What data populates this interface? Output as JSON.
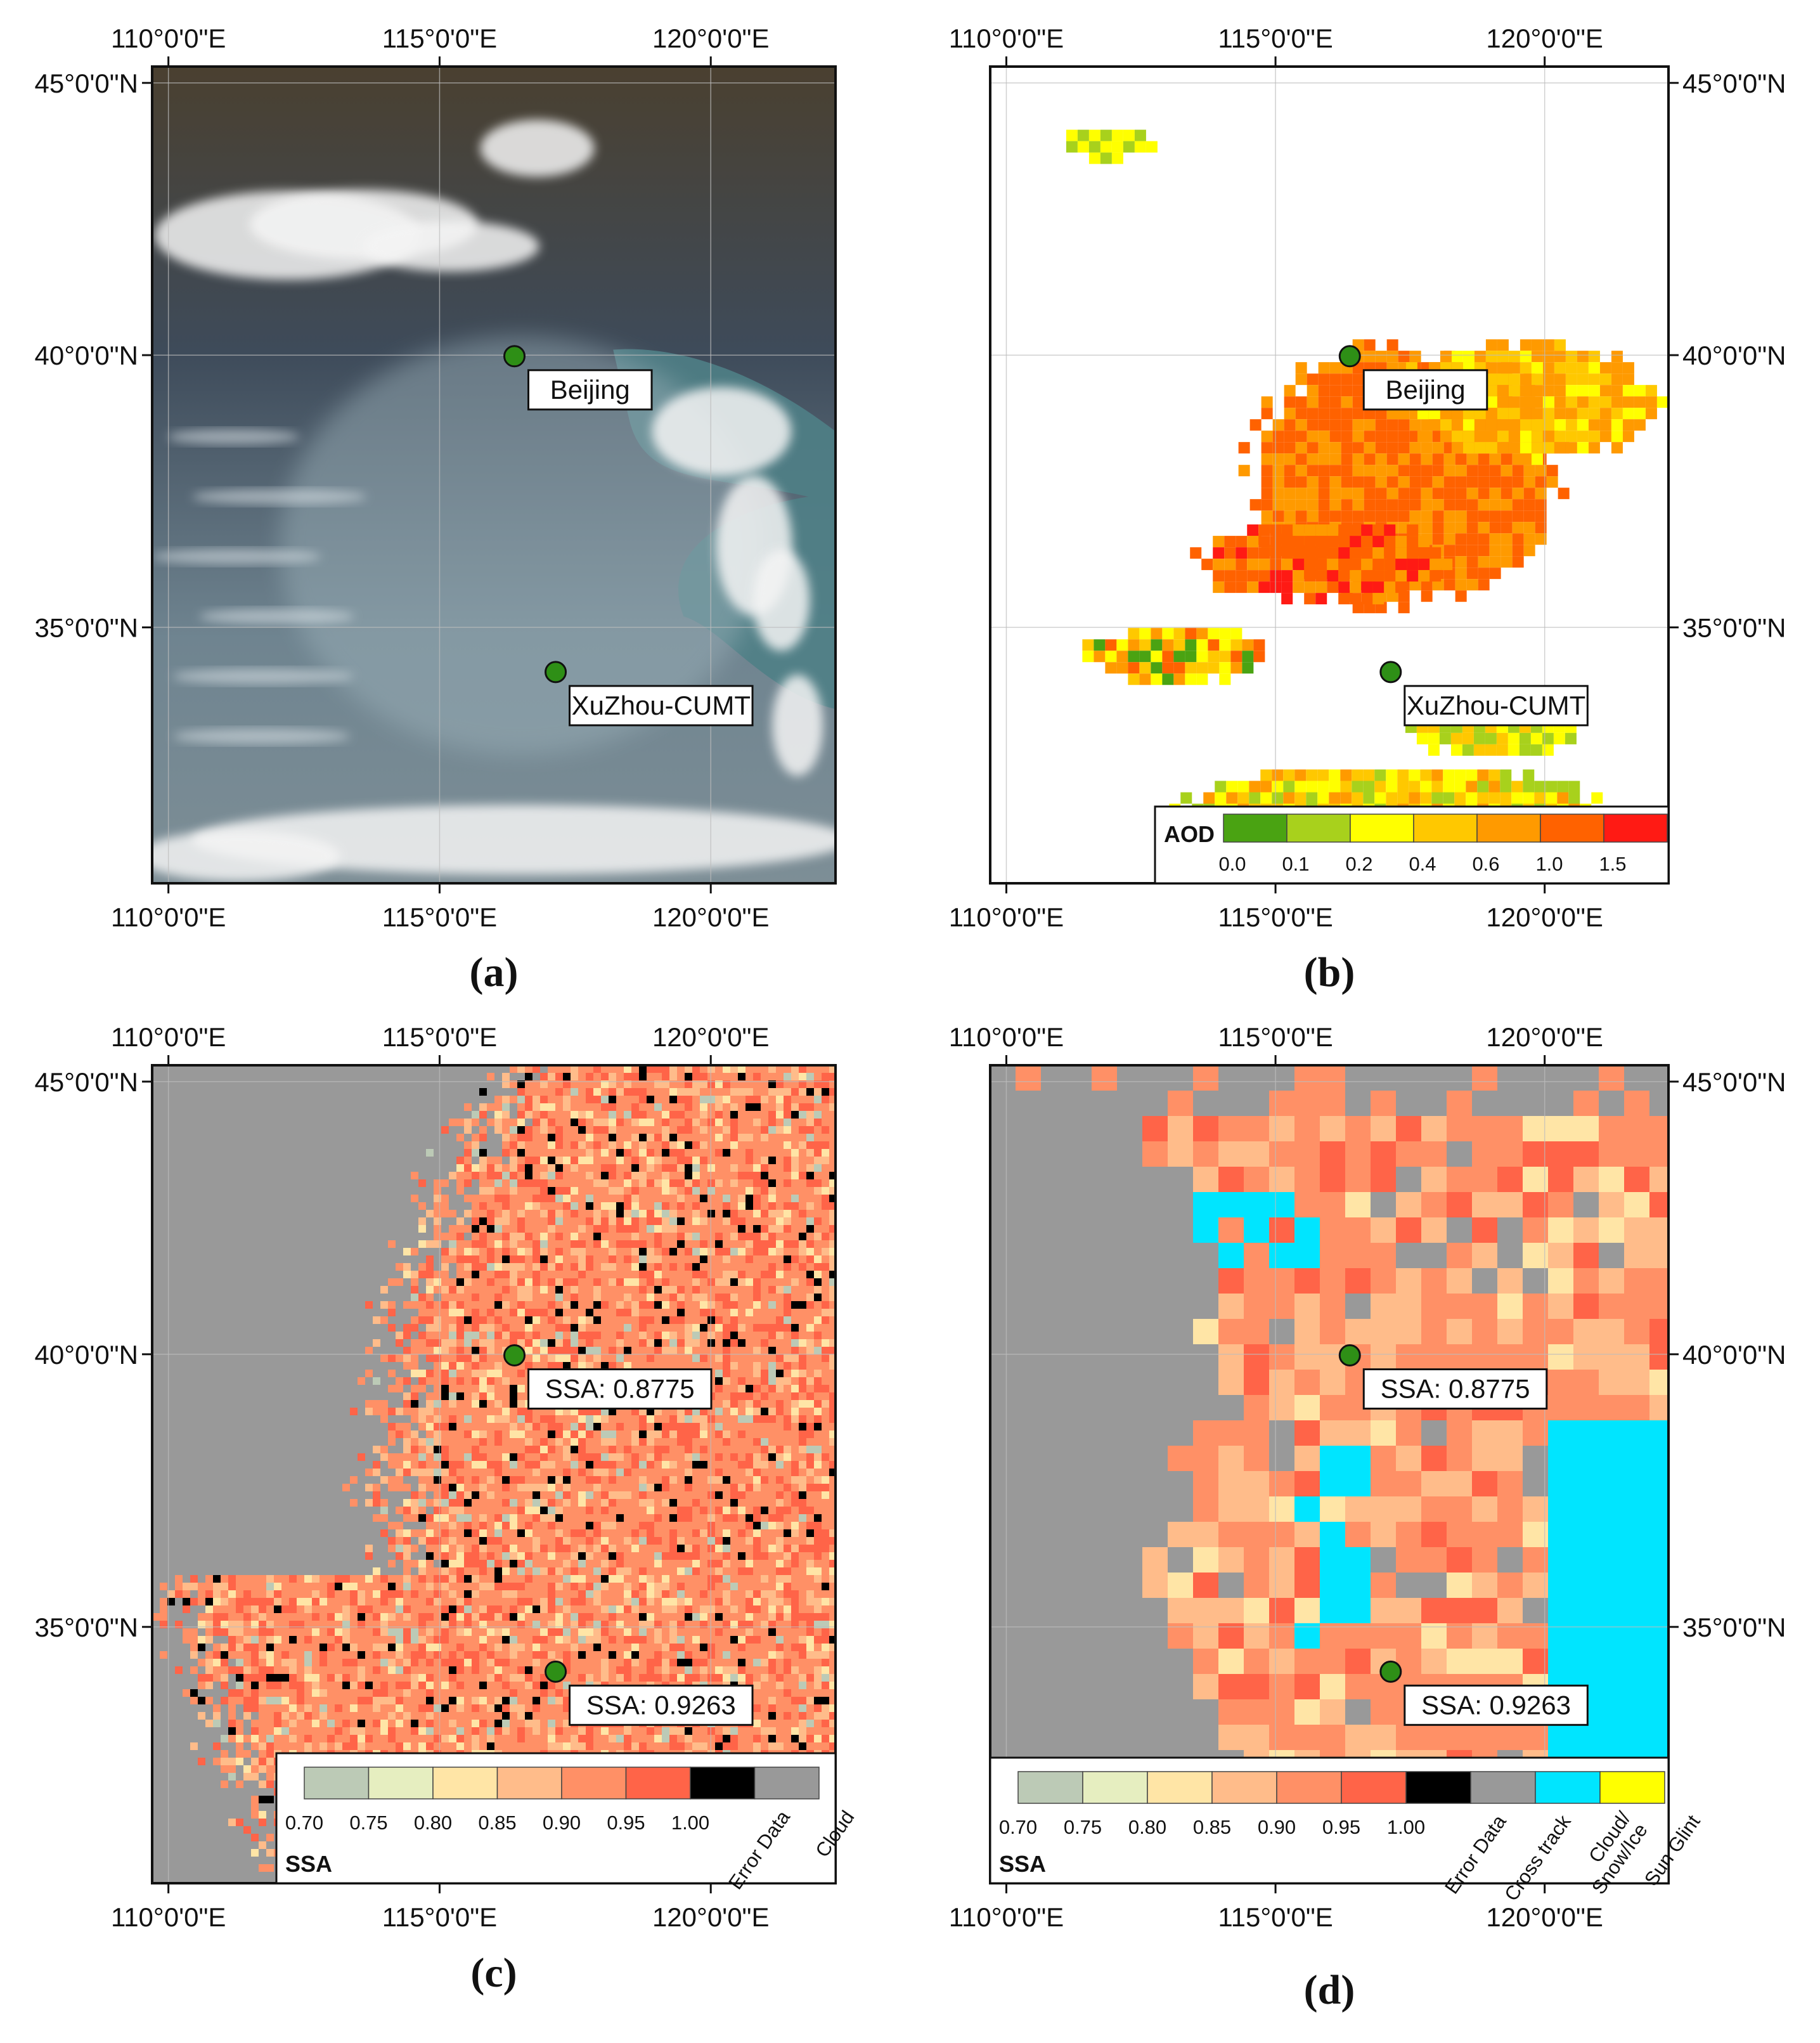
{
  "panels": [
    {
      "id": "a",
      "label": "(a)",
      "top_ticks": [
        "110°0'0\"E",
        "115°0'0\"E",
        "120°0'0\"E"
      ],
      "bottom_ticks": [
        "110°0'0\"E",
        "115°0'0\"E",
        "120°0'0\"E"
      ],
      "lat_ticks": [
        "45°0'0\"N",
        "40°0'0\"N",
        "35°0'0\"N"
      ],
      "sites": [
        {
          "name": "Beijing",
          "label": "Beijing"
        },
        {
          "name": "XuZhou-CUMT",
          "label": "XuZhou-CUMT"
        }
      ]
    },
    {
      "id": "b",
      "label": "(b)",
      "top_ticks": [
        "110°0'0\"E",
        "115°0'0\"E",
        "120°0'0\"E"
      ],
      "bottom_ticks": [
        "110°0'0\"E",
        "115°0'0\"E",
        "120°0'0\"E"
      ],
      "lat_ticks": [
        "45°0'0\"N",
        "40°0'0\"N",
        "35°0'0\"N"
      ],
      "sites": [
        {
          "name": "Beijing",
          "label": "Beijing"
        },
        {
          "name": "XuZhou-CUMT",
          "label": "XuZhou-CUMT"
        }
      ],
      "legend": {
        "title": "AOD",
        "colors": [
          "#4aa312",
          "#a8d11c",
          "#ffff00",
          "#ffc800",
          "#ff9a00",
          "#ff6200",
          "#ff1a14"
        ],
        "labels": [
          "0.0",
          "0.1",
          "0.2",
          "0.4",
          "0.6",
          "1.0",
          "1.5"
        ]
      }
    },
    {
      "id": "c",
      "label": "(c)",
      "top_ticks": [
        "110°0'0\"E",
        "115°0'0\"E",
        "120°0'0\"E"
      ],
      "bottom_ticks": [
        "110°0'0\"E",
        "115°0'0\"E",
        "120°0'0\"E"
      ],
      "lat_ticks": [
        "45°0'0\"N",
        "40°0'0\"N",
        "35°0'0\"N"
      ],
      "sites": [
        {
          "name": "Beijing",
          "label": "SSA: 0.8775"
        },
        {
          "name": "XuZhou-CUMT",
          "label": "SSA: 0.9263"
        }
      ],
      "legend": {
        "title": "SSA",
        "colors": [
          "#bccab6",
          "#e6eec0",
          "#ffe5a6",
          "#ffbc8a",
          "#ff9066",
          "#ff6448",
          "#000000",
          "#999999"
        ],
        "labels": [
          "0.70",
          "0.75",
          "0.80",
          "0.85",
          "0.90",
          "0.95",
          "1.00"
        ],
        "category_labels": [
          "Error Data",
          "Cloud"
        ]
      }
    },
    {
      "id": "d",
      "label": "(d)",
      "top_ticks": [
        "110°0'0\"E",
        "115°0'0\"E",
        "120°0'0\"E"
      ],
      "bottom_ticks": [
        "110°0'0\"E",
        "115°0'0\"E",
        "120°0'0\"E"
      ],
      "lat_ticks": [
        "45°0'0\"N",
        "40°0'0\"N",
        "35°0'0\"N"
      ],
      "sites": [
        {
          "name": "Beijing",
          "label": "SSA: 0.8775"
        },
        {
          "name": "XuZhou-CUMT",
          "label": "SSA: 0.9263"
        }
      ],
      "legend": {
        "title": "SSA",
        "colors": [
          "#bccab6",
          "#e6eec0",
          "#ffe5a6",
          "#ffbc8a",
          "#ff9066",
          "#ff6448",
          "#000000",
          "#999999",
          "#00e5ff",
          "#ffff00"
        ],
        "labels": [
          "0.70",
          "0.75",
          "0.80",
          "0.85",
          "0.90",
          "0.95",
          "1.00"
        ],
        "category_labels": [
          "Error Data",
          "Cross track",
          "Cloud/ Snow/Ice",
          "Sun Glint"
        ]
      }
    }
  ]
}
